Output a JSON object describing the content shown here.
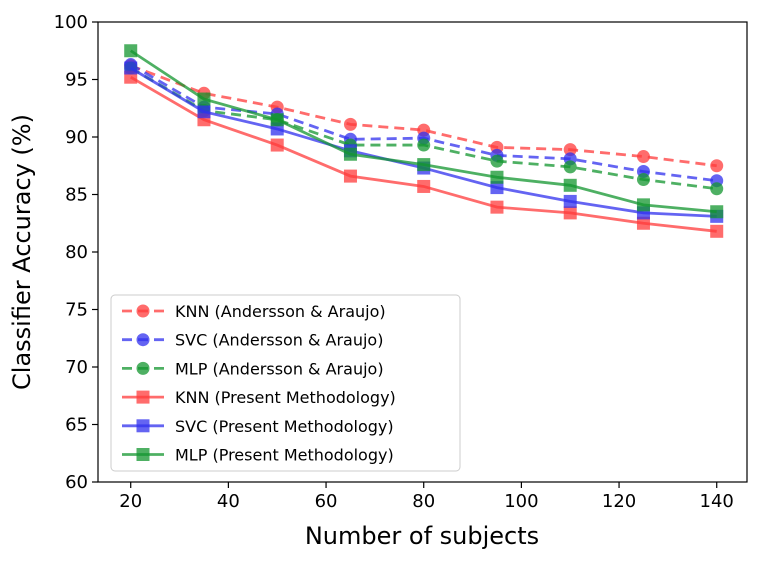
{
  "chart_data": {
    "type": "line",
    "title": "",
    "xlabel": "Number of subjects",
    "ylabel": "Classifier Accuracy (%)",
    "xlim": [
      13.3,
      146.2
    ],
    "ylim": [
      60,
      100
    ],
    "xticks": [
      20,
      40,
      60,
      80,
      100,
      120,
      140
    ],
    "yticks": [
      60,
      65,
      70,
      75,
      80,
      85,
      90,
      95,
      100
    ],
    "grid": false,
    "legend_position": "lower-left",
    "x": [
      20,
      35,
      50,
      65,
      80,
      95,
      110,
      125,
      140
    ],
    "series": [
      {
        "name": "KNN (Andersson & Araujo)",
        "color": "#ff3b3b",
        "dash": true,
        "marker": "circle",
        "values": [
          96.2,
          93.8,
          92.6,
          91.1,
          90.6,
          89.1,
          88.9,
          88.3,
          87.5
        ]
      },
      {
        "name": "SVC (Andersson & Araujo)",
        "color": "#3030ee",
        "dash": true,
        "marker": "circle",
        "values": [
          96.3,
          92.6,
          92.0,
          89.8,
          89.9,
          88.4,
          88.1,
          87.0,
          86.2
        ]
      },
      {
        "name": "MLP (Andersson & Araujo)",
        "color": "#13962f",
        "dash": true,
        "marker": "circle",
        "values": [
          96.0,
          92.3,
          91.5,
          89.3,
          89.3,
          87.9,
          87.4,
          86.3,
          85.5
        ]
      },
      {
        "name": "KNN (Present Methodology)",
        "color": "#ff3b3b",
        "dash": false,
        "marker": "square",
        "values": [
          95.2,
          91.5,
          89.3,
          86.6,
          85.7,
          83.9,
          83.4,
          82.5,
          81.8
        ]
      },
      {
        "name": "SVC (Present Methodology)",
        "color": "#3030ee",
        "dash": false,
        "marker": "square",
        "values": [
          96.0,
          92.2,
          90.7,
          88.8,
          87.3,
          85.6,
          84.4,
          83.4,
          83.1
        ]
      },
      {
        "name": "MLP (Present Methodology)",
        "color": "#13962f",
        "dash": false,
        "marker": "square",
        "values": [
          97.5,
          93.3,
          91.5,
          88.5,
          87.6,
          86.5,
          85.8,
          84.1,
          83.5
        ]
      }
    ]
  }
}
